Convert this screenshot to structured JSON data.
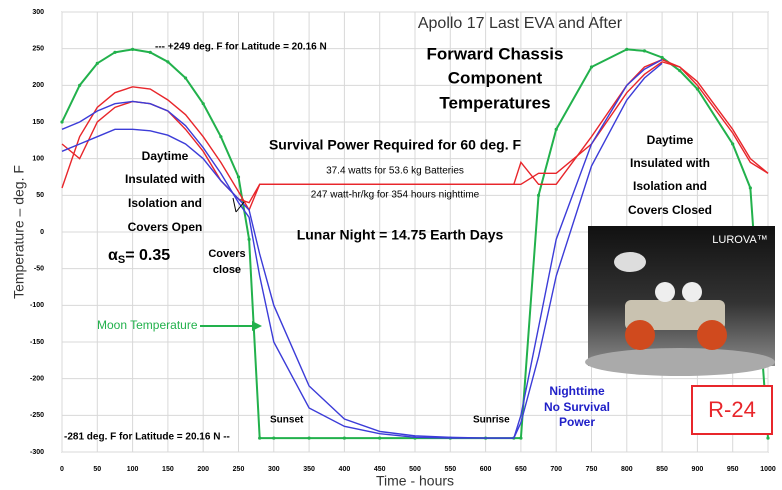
{
  "chart_data": {
    "type": "line",
    "title": "Apollo 17 Last EVA and After",
    "subtitle": [
      "Forward Chassis",
      "Component",
      "Temperatures"
    ],
    "x_label": "Time - hours",
    "y_label": "Temperature – deg. F",
    "xlim": [
      0,
      1000
    ],
    "ylim": [
      -300,
      300
    ],
    "xticks": [
      0,
      50,
      100,
      150,
      200,
      250,
      300,
      350,
      400,
      450,
      500,
      550,
      600,
      650,
      700,
      750,
      800,
      850,
      900,
      950,
      1000
    ],
    "yticks": [
      -300,
      -250,
      -200,
      -150,
      -100,
      -50,
      0,
      50,
      100,
      150,
      200,
      250,
      300
    ],
    "grid": true,
    "x": [
      0,
      25,
      50,
      75,
      100,
      125,
      150,
      175,
      200,
      225,
      250,
      265,
      280,
      300,
      350,
      400,
      450,
      500,
      550,
      600,
      640,
      650,
      675,
      700,
      750,
      800,
      825,
      850,
      875,
      900,
      950,
      975,
      1000
    ],
    "series": [
      {
        "name": "Moon Temperature",
        "color": "#22b14c",
        "values": [
          150,
          200,
          230,
          245,
          249,
          245,
          232,
          210,
          175,
          130,
          75,
          -10,
          -281,
          -281,
          -281,
          -281,
          -281,
          -281,
          -281,
          -281,
          -281,
          -281,
          50,
          140,
          225,
          249,
          247,
          238,
          220,
          195,
          120,
          60,
          -281
        ]
      },
      {
        "color": "#e8262b",
        "values": [
          60,
          130,
          170,
          190,
          198,
          195,
          180,
          160,
          130,
          95,
          55,
          30,
          65,
          65,
          65,
          65,
          65,
          65,
          65,
          65,
          65,
          95,
          65,
          65,
          130,
          200,
          225,
          235,
          225,
          205,
          140,
          100,
          80
        ]
      },
      {
        "color": "#e8262b",
        "values": [
          120,
          100,
          150,
          170,
          178,
          175,
          165,
          140,
          110,
          70,
          45,
          40,
          65,
          65,
          65,
          65,
          65,
          65,
          65,
          65,
          65,
          65,
          80,
          80,
          120,
          190,
          215,
          232,
          225,
          200,
          135,
          95,
          80
        ]
      },
      {
        "color": "#3c3cd8",
        "values": [
          140,
          150,
          165,
          175,
          178,
          175,
          165,
          145,
          115,
          80,
          40,
          20,
          -60,
          -150,
          -240,
          -265,
          -275,
          -280,
          -281,
          -281,
          -281,
          -250,
          -130,
          -10,
          120,
          200,
          222,
          235,
          null,
          null,
          null,
          null,
          null
        ]
      },
      {
        "color": "#3c3cd8",
        "values": [
          110,
          120,
          130,
          140,
          140,
          138,
          132,
          120,
          100,
          70,
          45,
          30,
          -30,
          -100,
          -210,
          -255,
          -272,
          -278,
          -280,
          -281,
          -281,
          -260,
          -170,
          -60,
          90,
          180,
          210,
          230,
          null,
          null,
          null,
          null,
          null
        ]
      }
    ],
    "annotations": [
      "--- +249 deg. F for Latitude = 20.16 N",
      "Daytime",
      "Insulated with",
      "Isolation and",
      "Covers Open",
      "Survival Power Required for 60 deg. F",
      "37.4 watts for 53.6 kg Batteries",
      "247 watt-hr/kg for 354 hours nighttime",
      "Lunar Night = 14.75 Earth Days",
      "Covers",
      "close",
      "Sunset",
      "Sunrise",
      "Nighttime",
      "No Survival",
      "Power",
      "Daytime",
      "Insulated with",
      "Isolation and",
      "Covers Closed",
      "-281 deg. F for Latitude = 20.16 N --"
    ],
    "alpha_label": [
      "α",
      "S",
      "= 0.35"
    ],
    "image_label": "LUROVA™",
    "badge": "R-24"
  }
}
